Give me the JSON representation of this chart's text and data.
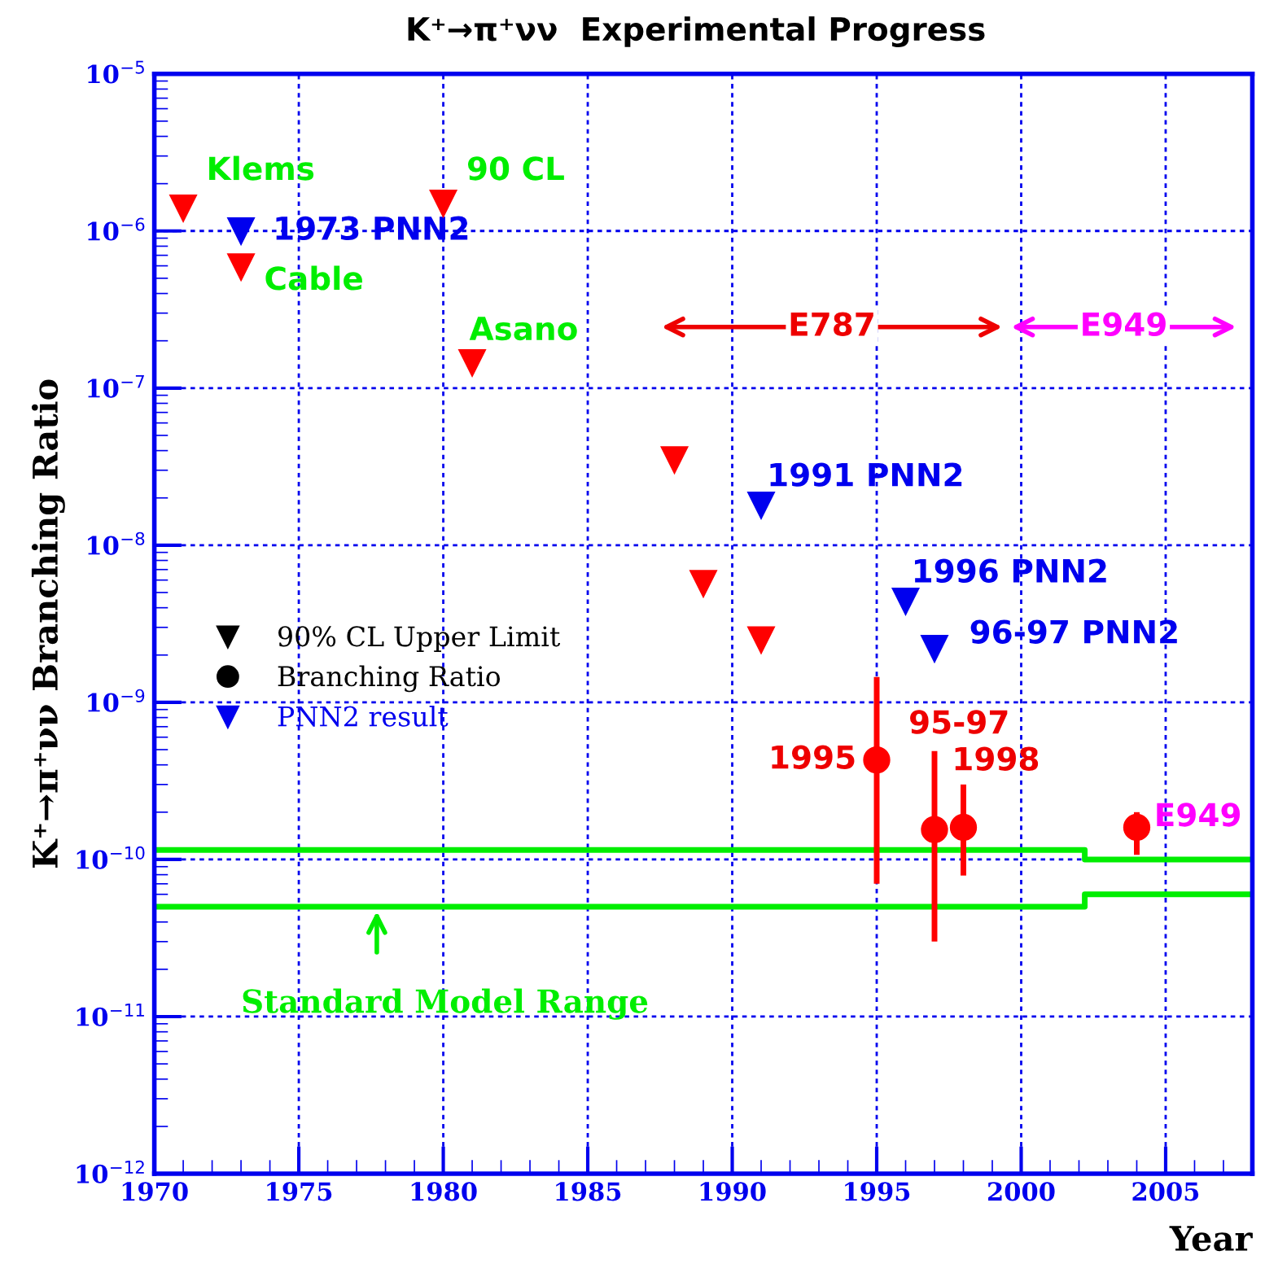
{
  "chart_data": {
    "type": "scatter",
    "title": "K⁺→π⁺νν  Experimental Progress",
    "xlabel": "Year",
    "ylabel": "K⁺→π⁺νν Branching Ratio",
    "log": "y",
    "grid": true,
    "legend": "left",
    "xlim": [
      1970,
      2008
    ],
    "xticks": [
      1970,
      1975,
      1980,
      1985,
      1990,
      1995,
      2000,
      2005
    ],
    "ylim": [
      1e-12,
      1e-05
    ],
    "yticks": [
      {
        "value": 1e-12,
        "label": "10$^{−12}$"
      },
      {
        "value": 1e-11,
        "label": "10$^{−11}$"
      },
      {
        "value": 1e-10,
        "label": "10$^{−10}$"
      },
      {
        "value": 1e-09,
        "label": "10$^{−9}$"
      },
      {
        "value": 1e-08,
        "label": "10$^{−8}$"
      },
      {
        "value": 1e-07,
        "label": "10$^{−7}$"
      },
      {
        "value": 1e-06,
        "label": "10$^{−6}$"
      },
      {
        "value": 1e-05,
        "label": "10$^{−5}$"
      }
    ],
    "series": [
      {
        "type": "step",
        "color": "#00ee00",
        "x": [
          1970,
          2002.2,
          2008
        ],
        "values": [
          1.15e-10,
          1e-10,
          1e-10
        ]
      },
      {
        "type": "step",
        "color": "#00ee00",
        "x": [
          1970,
          2002.2,
          2008
        ],
        "values": [
          5e-11,
          6e-11,
          6e-11
        ]
      },
      {
        "color": "#ff0000",
        "marker": "triangle",
        "x": [
          1971,
          1973,
          1980,
          1981,
          1988,
          1989,
          1991
        ],
        "values": [
          1.4e-06,
          5.9e-07,
          1.5e-06,
          1.45e-07,
          3.5e-08,
          5.7e-09,
          2.5e-09
        ]
      },
      {
        "color": "#ff0000",
        "marker": "circle",
        "x": [
          1995,
          1997,
          1998,
          2004
        ],
        "values": [
          4.3e-10,
          1.55e-10,
          1.6e-10,
          1.6e-10
        ],
        "errors": [
          [
            7e-11,
            1.45e-09
          ],
          [
            3e-11,
            4.9e-10
          ],
          [
            7.9e-11,
            3e-10
          ],
          [
            1.07e-10,
            2e-10
          ]
        ]
      },
      {
        "name": "PNN2 result",
        "color": "#0000ee",
        "marker": "triangle",
        "x": [
          1973,
          1991,
          1996,
          1997
        ],
        "values": [
          1e-06,
          1.8e-08,
          4.4e-09,
          2.2e-09
        ]
      }
    ],
    "annotations": [
      "Klems",
      "90 CL",
      "1973 PNN2",
      "Cable",
      "Asano",
      "1991 PNN2",
      "1996 PNN2",
      "96-97 PNN2",
      "1995",
      "95-97",
      "1998",
      "E949",
      "E787",
      "E949",
      "Standard Model Range",
      "90% CL Upper Limit",
      "Branching Ratio"
    ]
  }
}
